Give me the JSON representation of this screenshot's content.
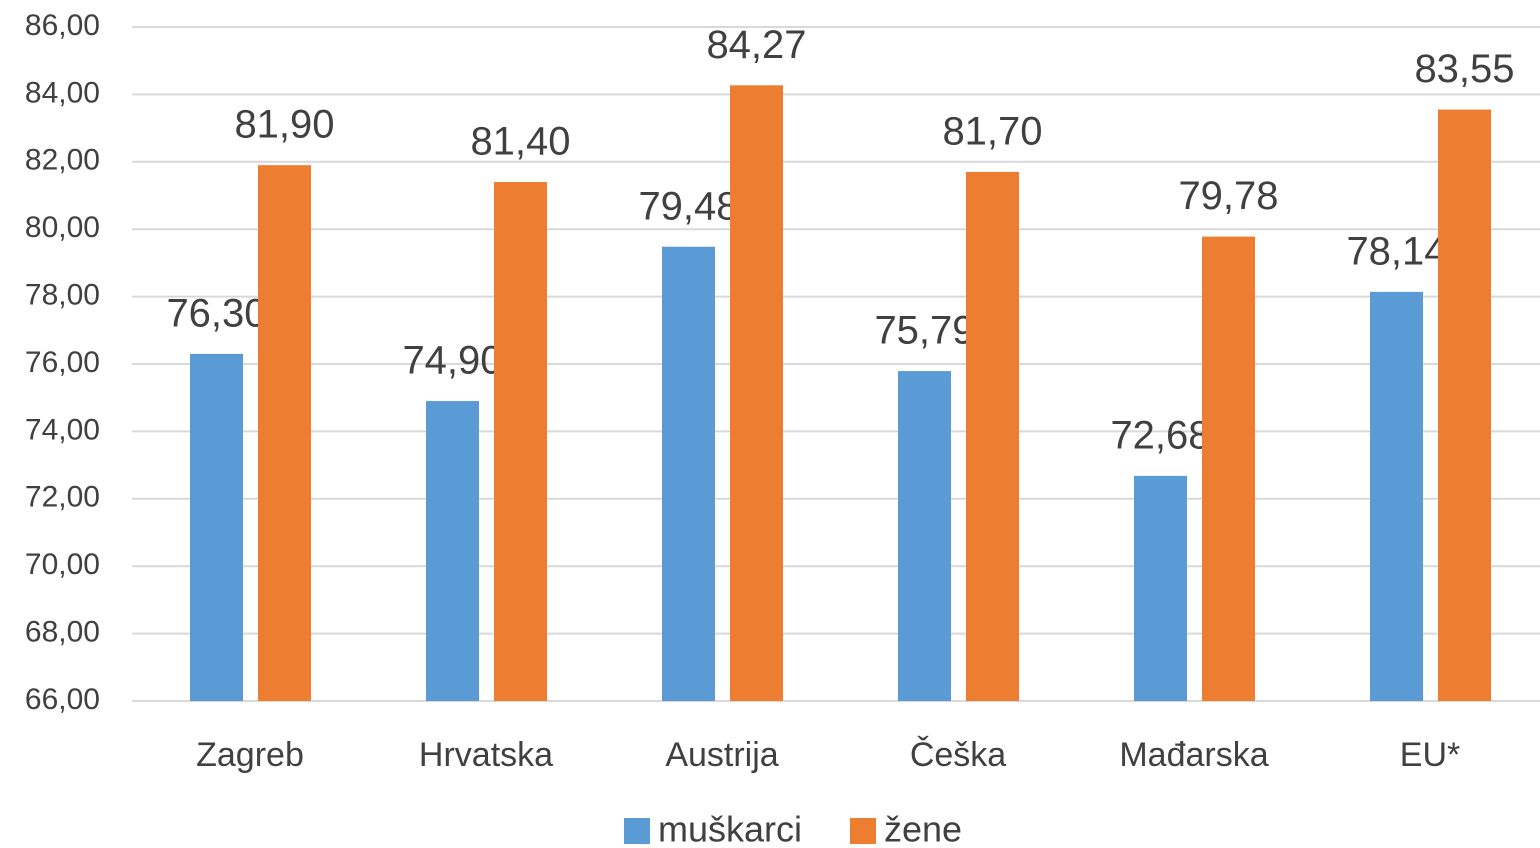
{
  "chart_data": {
    "type": "bar",
    "categories": [
      "Zagreb",
      "Hrvatska",
      "Austrija",
      "Češka",
      "Mađarska",
      "EU*"
    ],
    "series": [
      {
        "name": "muškarci",
        "color": "#5b9bd5",
        "values": [
          76.3,
          74.9,
          79.48,
          75.79,
          72.68,
          78.14
        ],
        "value_labels": [
          "76,30",
          "74,90",
          "79,48",
          "75,79",
          "72,68",
          "78,14"
        ]
      },
      {
        "name": "žene",
        "color": "#ed7d31",
        "values": [
          81.9,
          81.4,
          84.27,
          81.7,
          79.78,
          83.55
        ],
        "value_labels": [
          "81,90",
          "81,40",
          "84,27",
          "81,70",
          "79,78",
          "83,55"
        ]
      }
    ],
    "ylim": [
      66,
      86
    ],
    "yticks": [
      {
        "value": 66,
        "label": "66,00"
      },
      {
        "value": 68,
        "label": "68,00"
      },
      {
        "value": 70,
        "label": "70,00"
      },
      {
        "value": 72,
        "label": "72,00"
      },
      {
        "value": 74,
        "label": "74,00"
      },
      {
        "value": 76,
        "label": "76,00"
      },
      {
        "value": 78,
        "label": "78,00"
      },
      {
        "value": 80,
        "label": "80,00"
      },
      {
        "value": 82,
        "label": "82,00"
      },
      {
        "value": 84,
        "label": "84,00"
      },
      {
        "value": 86,
        "label": "86,00"
      }
    ],
    "grid": true,
    "legend": "bottom"
  }
}
